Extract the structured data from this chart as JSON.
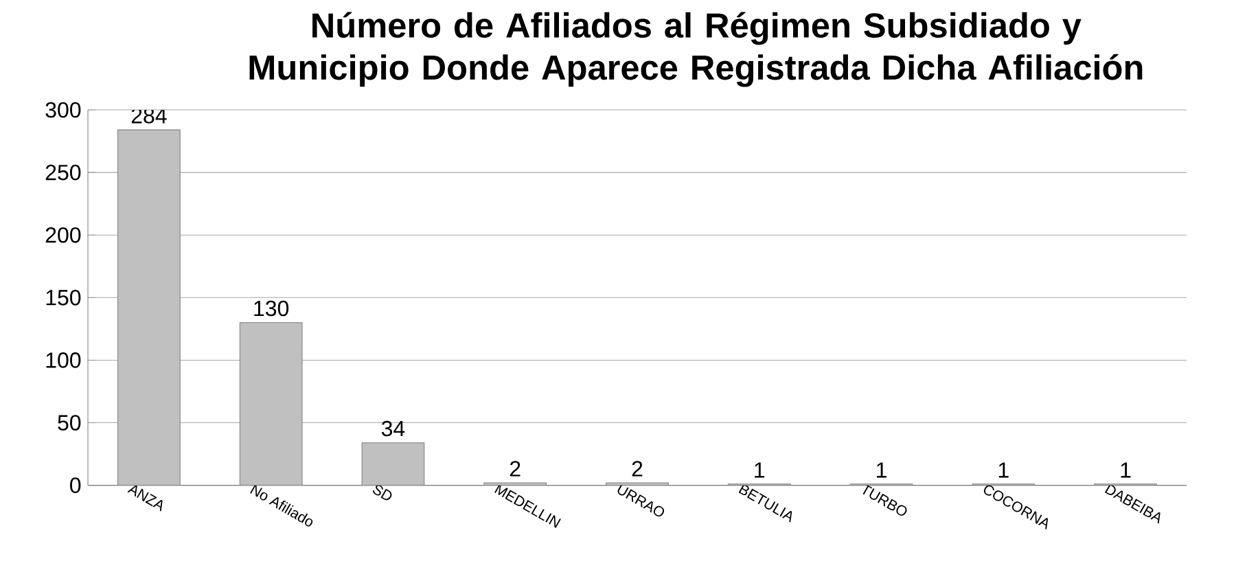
{
  "chart_data": {
    "type": "bar",
    "title": "Número de Afiliados al Régimen Subsidiado y Municipio Donde Aparece Registrada Dicha Afiliación",
    "categories": [
      "ANZA",
      "No Afiliado",
      "SD",
      "MEDELLIN",
      "URRAO",
      "BETULIA",
      "TURBO",
      "COCORNA",
      "DABEIBA"
    ],
    "values": [
      284,
      130,
      34,
      2,
      2,
      1,
      1,
      1,
      1
    ],
    "color": "#c0c0c0",
    "ylim": [
      0,
      300
    ],
    "yticks": [
      0,
      50,
      100,
      150,
      200,
      250,
      300
    ],
    "grid": "y",
    "data_labels": true
  }
}
